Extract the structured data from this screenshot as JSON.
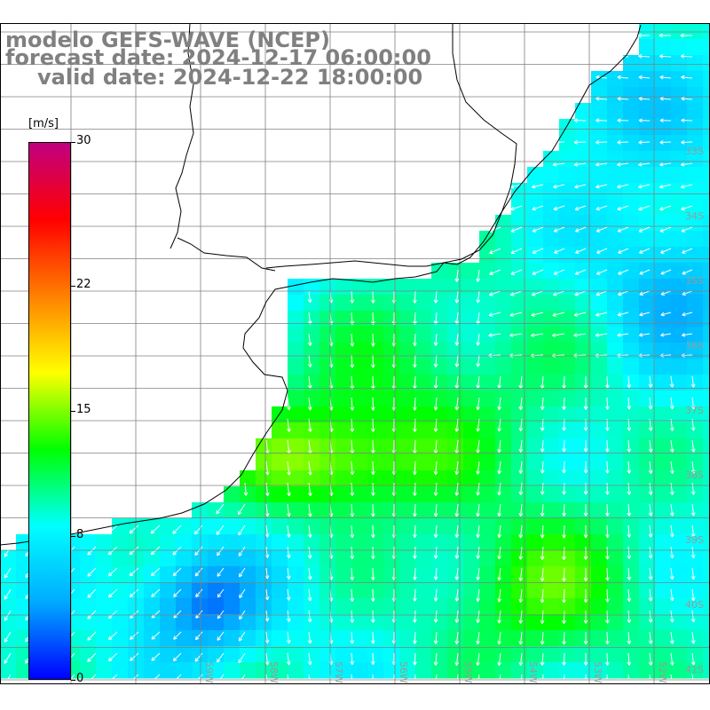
{
  "header": {
    "line1": "modelo GEFS-WAVE (NCEP)",
    "line2": "forecast date: 2024-12-17 06:00:00",
    "line3": "valid date: 2024-12-22 18:00:00"
  },
  "colorbar": {
    "units": "[m/s]",
    "ticks": [
      {
        "label": "30",
        "value": 30
      },
      {
        "label": "22",
        "value": 22
      },
      {
        "label": "15",
        "value": 15
      },
      {
        "label": "8",
        "value": 8
      },
      {
        "label": "0",
        "value": 0
      }
    ],
    "colors": [
      "#0000ff",
      "#00aaff",
      "#00ffff",
      "#00ff00",
      "#ffff00",
      "#ff8000",
      "#ff0000",
      "#c00080"
    ]
  },
  "map": {
    "lat_labels": [
      "33S",
      "34S",
      "35S",
      "36S",
      "37S",
      "38S",
      "39S",
      "40S",
      "41S"
    ],
    "lon_labels": [
      "59W",
      "58W",
      "57W",
      "56W",
      "55W",
      "54W",
      "53W",
      "52W",
      "51W"
    ],
    "land_color": "#ffffff",
    "coast_color": "#000000",
    "grid_color": "#808080",
    "arrow_color": "#ffffff"
  }
}
